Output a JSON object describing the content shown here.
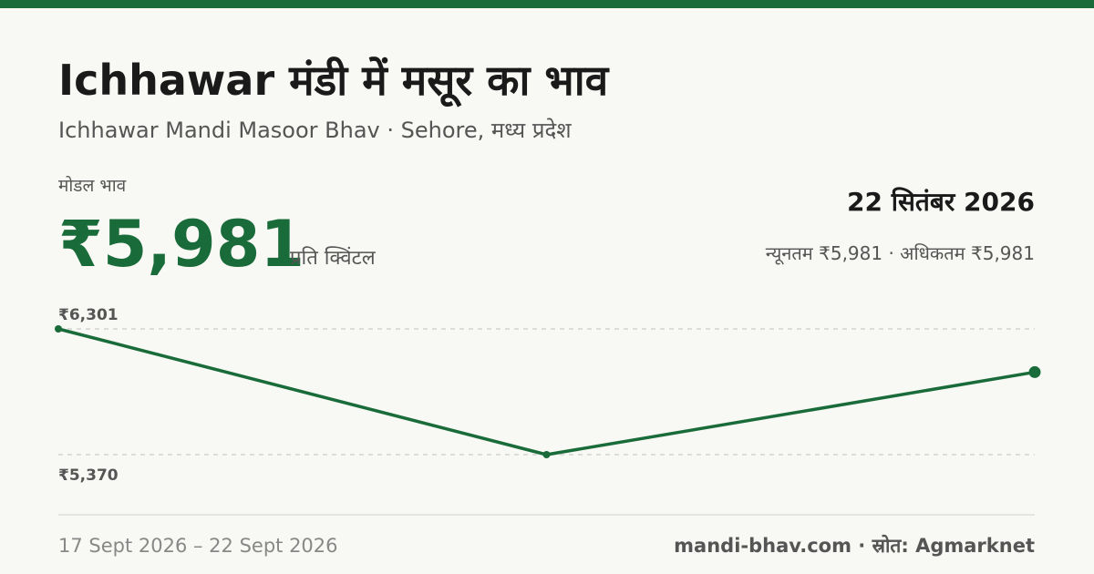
{
  "header": {
    "title": "Ichhawar मंडी में मसूर का भाव",
    "subtitle": "Ichhawar Mandi Masoor Bhav · Sehore, मध्य प्रदेश"
  },
  "price": {
    "label": "मोडल भाव",
    "value": "₹5,981",
    "unit": "प्रति क्विंटल",
    "date": "22 सितंबर 2026",
    "range": "न्यूनतम ₹5,981 · अधिकतम ₹5,981"
  },
  "chart_data": {
    "type": "line",
    "values": [
      6301,
      5370,
      5981
    ],
    "color": "#1a6b3a",
    "ylim": [
      5370,
      6301
    ],
    "yticks": [
      {
        "value": 6301,
        "label": "₹6,301"
      },
      {
        "value": 5370,
        "label": "₹5,370"
      }
    ],
    "grid": true
  },
  "footer": {
    "dates": "17 Sept 2026 – 22 Sept 2026",
    "source": "mandi-bhav.com · स्रोत: Agmarknet"
  }
}
